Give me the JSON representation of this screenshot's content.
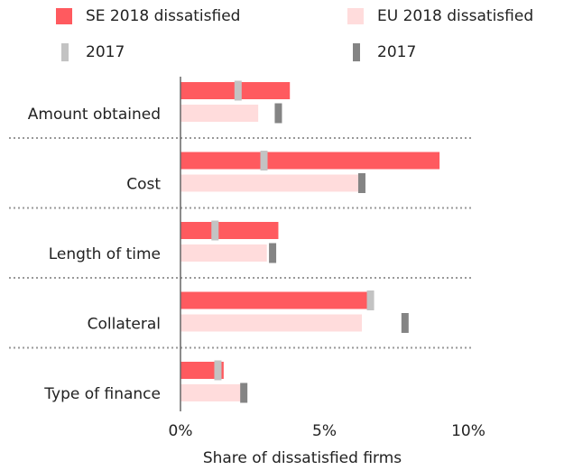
{
  "chart_data": {
    "type": "bar",
    "orientation": "horizontal",
    "categories": [
      "Amount obtained",
      "Cost",
      "Length of time",
      "Collateral",
      "Type of finance"
    ],
    "series": [
      {
        "name": "SE 2018 dissatisfied",
        "color": "#ff5a5f",
        "style": "bar",
        "values": [
          3.8,
          9.0,
          3.4,
          6.5,
          1.5
        ]
      },
      {
        "name": "EU 2018 dissatisfied",
        "color": "#ffdcdc",
        "style": "bar",
        "values": [
          2.7,
          6.3,
          3.0,
          6.3,
          2.1
        ]
      },
      {
        "name": "2017",
        "color": "#c3c3c3",
        "style": "marker",
        "values": [
          2.0,
          2.9,
          1.2,
          6.6,
          1.3
        ]
      },
      {
        "name": "2017",
        "color": "#848484",
        "style": "marker",
        "values": [
          3.4,
          6.3,
          3.2,
          7.8,
          2.2
        ]
      }
    ],
    "xlabel": "Share of dissatisfied firms",
    "xlim": [
      0,
      10
    ],
    "xticks": [
      {
        "value": 0,
        "label": "0%"
      },
      {
        "value": 5,
        "label": "5%"
      },
      {
        "value": 10,
        "label": "10%"
      }
    ],
    "grid": false
  }
}
